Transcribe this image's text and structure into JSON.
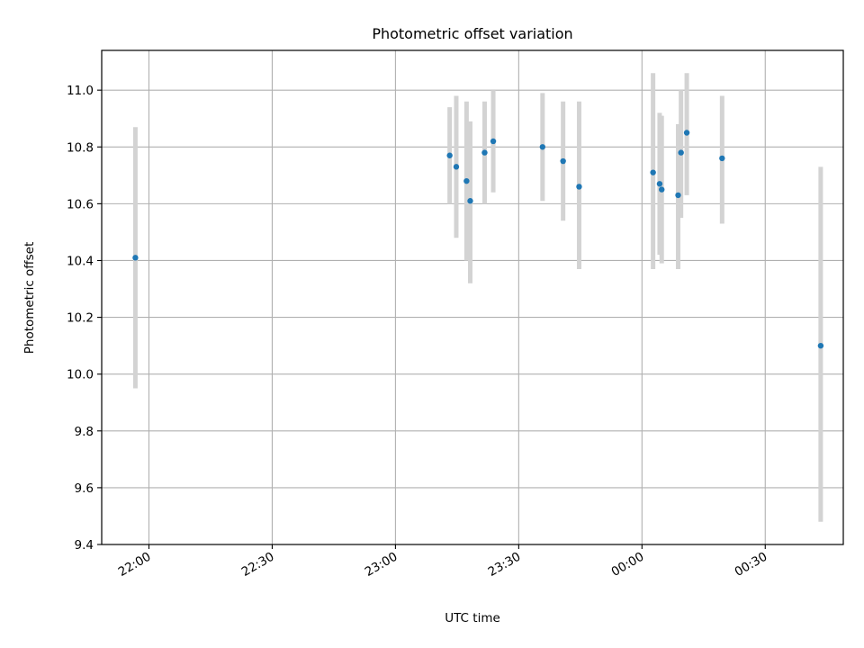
{
  "chart_data": {
    "type": "scatter",
    "title": "Photometric offset variation",
    "xlabel": "UTC time",
    "ylabel": "Photometric offset",
    "grid": true,
    "x_unit": "minutes since 22:00 UTC",
    "xlim": [
      -11.5,
      169.0
    ],
    "ylim": [
      9.4,
      11.14
    ],
    "x_ticks": [
      {
        "value": 0,
        "label": "22:00"
      },
      {
        "value": 30,
        "label": "22:30"
      },
      {
        "value": 60,
        "label": "23:00"
      },
      {
        "value": 90,
        "label": "23:30"
      },
      {
        "value": 120,
        "label": "00:00"
      },
      {
        "value": 150,
        "label": "00:30"
      }
    ],
    "y_ticks": [
      {
        "value": 9.4,
        "label": "9.4"
      },
      {
        "value": 9.6,
        "label": "9.6"
      },
      {
        "value": 9.8,
        "label": "9.8"
      },
      {
        "value": 10.0,
        "label": "10.0"
      },
      {
        "value": 10.2,
        "label": "10.2"
      },
      {
        "value": 10.4,
        "label": "10.4"
      },
      {
        "value": 10.6,
        "label": "10.6"
      },
      {
        "value": 10.8,
        "label": "10.8"
      },
      {
        "value": 11.0,
        "label": "11.0"
      }
    ],
    "colors": {
      "point": "#1f77b4",
      "errorbar": "#d3d3d3",
      "grid": "#b0b0b0"
    },
    "points": [
      {
        "x": -3.3,
        "y": 10.41,
        "lo": 9.95,
        "hi": 10.87
      },
      {
        "x": 73.2,
        "y": 10.77,
        "lo": 10.6,
        "hi": 10.94
      },
      {
        "x": 74.8,
        "y": 10.73,
        "lo": 10.48,
        "hi": 10.98
      },
      {
        "x": 77.3,
        "y": 10.68,
        "lo": 10.4,
        "hi": 10.96
      },
      {
        "x": 78.2,
        "y": 10.61,
        "lo": 10.32,
        "hi": 10.89
      },
      {
        "x": 81.7,
        "y": 10.78,
        "lo": 10.6,
        "hi": 10.96
      },
      {
        "x": 83.8,
        "y": 10.82,
        "lo": 10.64,
        "hi": 11.0
      },
      {
        "x": 95.8,
        "y": 10.8,
        "lo": 10.61,
        "hi": 10.99
      },
      {
        "x": 100.8,
        "y": 10.75,
        "lo": 10.54,
        "hi": 10.96
      },
      {
        "x": 104.7,
        "y": 10.66,
        "lo": 10.37,
        "hi": 10.96
      },
      {
        "x": 122.7,
        "y": 10.71,
        "lo": 10.37,
        "hi": 11.06
      },
      {
        "x": 124.3,
        "y": 10.67,
        "lo": 10.42,
        "hi": 10.92
      },
      {
        "x": 124.8,
        "y": 10.65,
        "lo": 10.39,
        "hi": 10.91
      },
      {
        "x": 128.8,
        "y": 10.63,
        "lo": 10.37,
        "hi": 10.88
      },
      {
        "x": 129.5,
        "y": 10.78,
        "lo": 10.55,
        "hi": 11.0
      },
      {
        "x": 130.9,
        "y": 10.85,
        "lo": 10.63,
        "hi": 11.06
      },
      {
        "x": 139.5,
        "y": 10.76,
        "lo": 10.53,
        "hi": 10.98
      },
      {
        "x": 163.5,
        "y": 10.1,
        "lo": 9.48,
        "hi": 10.73
      }
    ]
  }
}
